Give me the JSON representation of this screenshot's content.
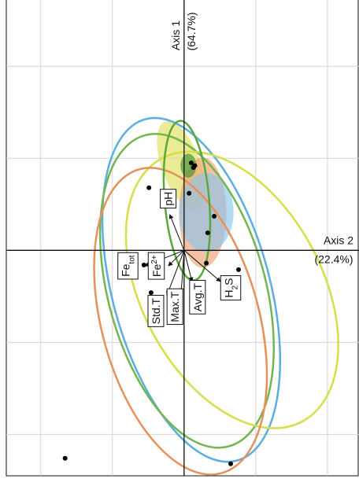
{
  "chart_data": {
    "type": "biplot",
    "x_axis_label": "Axis 2",
    "x_axis_share": "(22.4%)",
    "y_axis_label": "Axis 1",
    "y_axis_share": "(64.7%)",
    "xlim": [
      -2.48,
      2.44
    ],
    "ylim": [
      -2.45,
      2.72
    ],
    "xticks": [
      -2,
      -1,
      0,
      1,
      2
    ],
    "yticks": [
      -2,
      -1,
      0,
      1,
      2
    ],
    "grid": true,
    "points": {
      "color": "#000000",
      "x": [
        -0.49,
        0.1,
        0.13,
        0.15,
        0.07,
        0.42,
        0.33,
        0.31,
        0.76,
        -0.46,
        -0.56,
        -1.66,
        0.65
      ],
      "y": [
        0.68,
        0.95,
        0.9,
        0.92,
        0.62,
        0.37,
        0.19,
        -0.14,
        -0.21,
        -0.46,
        -0.16,
        -2.26,
        -2.32
      ]
    },
    "ellipses": [
      {
        "color": "#e0e060",
        "filled": true,
        "cx": -0.04,
        "cy": 0.92,
        "rx": 0.27,
        "ry": 0.51,
        "angle": -20
      },
      {
        "color": "#f0a070",
        "filled": true,
        "cx": 0.26,
        "cy": 0.41,
        "rx": 0.33,
        "ry": 0.6,
        "angle": 0
      },
      {
        "color": "#8cc4ec",
        "filled": true,
        "cx": 0.31,
        "cy": 0.41,
        "rx": 0.38,
        "ry": 0.43,
        "angle": 0
      },
      {
        "color": "#3f8f2f",
        "filled": true,
        "cx": 0.06,
        "cy": 0.92,
        "rx": 0.11,
        "ry": 0.13,
        "angle": 0
      },
      {
        "color": "#5aaee0",
        "filled": false,
        "cx": 0.1,
        "cy": -0.43,
        "rx": 1.1,
        "ry": 1.92,
        "angle": -15
      },
      {
        "color": "#74b64e",
        "filled": false,
        "cx": 0.04,
        "cy": -0.44,
        "rx": 1.1,
        "ry": 1.75,
        "angle": -15
      },
      {
        "color": "#d6de48",
        "filled": false,
        "cx": 0.67,
        "cy": -0.43,
        "rx": 1.26,
        "ry": 1.62,
        "angle": -28
      },
      {
        "color": "#e8905a",
        "filled": false,
        "cx": -0.05,
        "cy": -0.77,
        "rx": 1.1,
        "ry": 1.71,
        "angle": -15
      },
      {
        "color": "#5aa83c",
        "filled": false,
        "cx": 0.04,
        "cy": 0.54,
        "rx": 0.31,
        "ry": 0.87,
        "angle": -5
      }
    ],
    "vectors": [
      {
        "x": -0.2,
        "y": 0.39,
        "parts": [
          {
            "text": "pH"
          }
        ]
      },
      {
        "x": -0.55,
        "y": -0.17,
        "parts": [
          {
            "text": "Fe"
          },
          {
            "text": "tot",
            "sub": true
          }
        ]
      },
      {
        "x": -0.22,
        "y": -0.17,
        "parts": [
          {
            "text": "Fe"
          },
          {
            "text": "2+",
            "sup": true
          }
        ]
      },
      {
        "x": -0.24,
        "y": -0.49,
        "parts": [
          {
            "text": "Std.T"
          }
        ]
      },
      {
        "x": -0.04,
        "y": -0.46,
        "parts": [
          {
            "text": "Max.T"
          }
        ]
      },
      {
        "x": 0.11,
        "y": -0.34,
        "parts": [
          {
            "text": "Avg.T"
          }
        ]
      },
      {
        "x": 0.51,
        "y": -0.34,
        "parts": [
          {
            "text": "H"
          },
          {
            "text": "2",
            "sub": true
          },
          {
            "text": "S"
          }
        ]
      }
    ]
  }
}
